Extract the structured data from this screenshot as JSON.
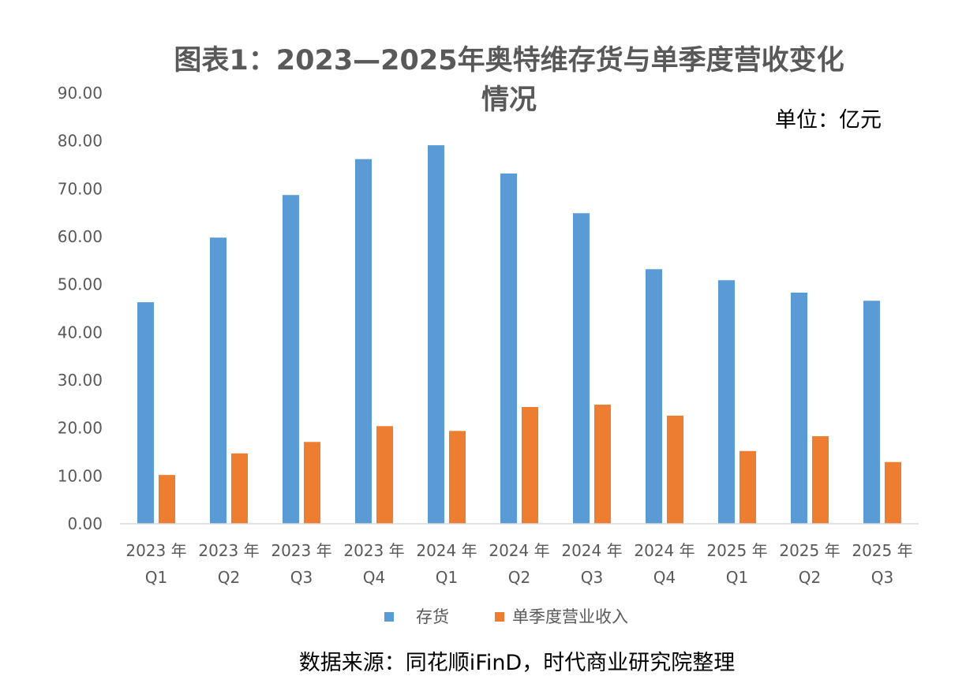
{
  "chart_data": {
    "type": "bar",
    "title_line1": "图表1：2023—2025年奥特维存货与单季度营收变化",
    "title_line2": "情况",
    "unit": "单位：亿元",
    "source": "数据来源：同花顺iFinD，时代商业研究院整理",
    "categories": [
      [
        "2023 年",
        "Q1"
      ],
      [
        "2023 年",
        "Q2"
      ],
      [
        "2023 年",
        "Q3"
      ],
      [
        "2023 年",
        "Q4"
      ],
      [
        "2024 年",
        "Q1"
      ],
      [
        "2024 年",
        "Q2"
      ],
      [
        "2024 年",
        "Q3"
      ],
      [
        "2024 年",
        "Q4"
      ],
      [
        "2025 年",
        "Q1"
      ],
      [
        "2025 年",
        "Q2"
      ],
      [
        "2025 年",
        "Q3"
      ]
    ],
    "series": [
      {
        "name": "存货",
        "color": "#5B9BD5",
        "values": [
          46.3,
          59.8,
          68.7,
          76.2,
          79.1,
          73.2,
          64.9,
          53.2,
          50.9,
          48.3,
          46.6
        ]
      },
      {
        "name": "单季度营业收入",
        "color": "#ED7D31",
        "values": [
          10.2,
          14.7,
          17.1,
          20.4,
          19.4,
          24.4,
          24.9,
          22.6,
          15.2,
          18.3,
          12.9
        ]
      }
    ],
    "ylim": [
      0,
      90
    ],
    "yticks": [
      "0.00",
      "10.00",
      "20.00",
      "30.00",
      "40.00",
      "50.00",
      "60.00",
      "70.00",
      "80.00",
      "90.00"
    ],
    "legend": "bottom",
    "grid": false
  }
}
